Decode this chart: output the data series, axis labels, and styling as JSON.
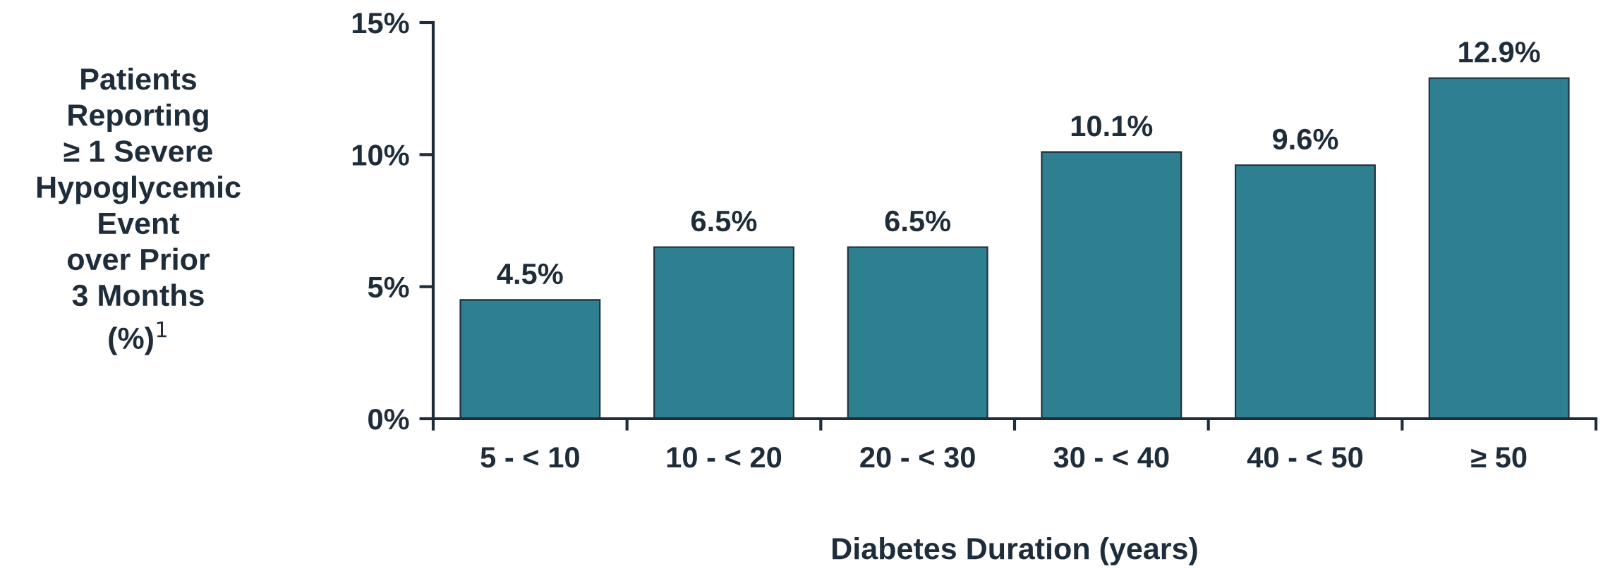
{
  "chart_data": {
    "type": "bar",
    "xlabel": "Diabetes Duration (years)",
    "ylabel": "Patients\nReporting\n≥ 1 Severe\nHypoglycemic\nEvent\nover Prior\n3 Months\n(%)$^{1}$",
    "categories": [
      "5 - < 10",
      "10 - < 20",
      "20 - < 30",
      "30 - < 40",
      "40 - < 50",
      "≥ 50"
    ],
    "values": [
      4.5,
      6.5,
      6.5,
      10.1,
      9.6,
      12.9
    ],
    "value_labels": [
      "4.5%",
      "6.5%",
      "6.5%",
      "10.1%",
      "9.6%",
      "12.9%"
    ],
    "color": "#2e7f8f",
    "ylim": [
      0,
      15
    ],
    "yticks": [
      {
        "value": 0,
        "label": "0%"
      },
      {
        "value": 5,
        "label": "5%"
      },
      {
        "value": 10,
        "label": "10%"
      },
      {
        "value": 15,
        "label": "15%"
      }
    ],
    "grid": false,
    "legend": false
  }
}
